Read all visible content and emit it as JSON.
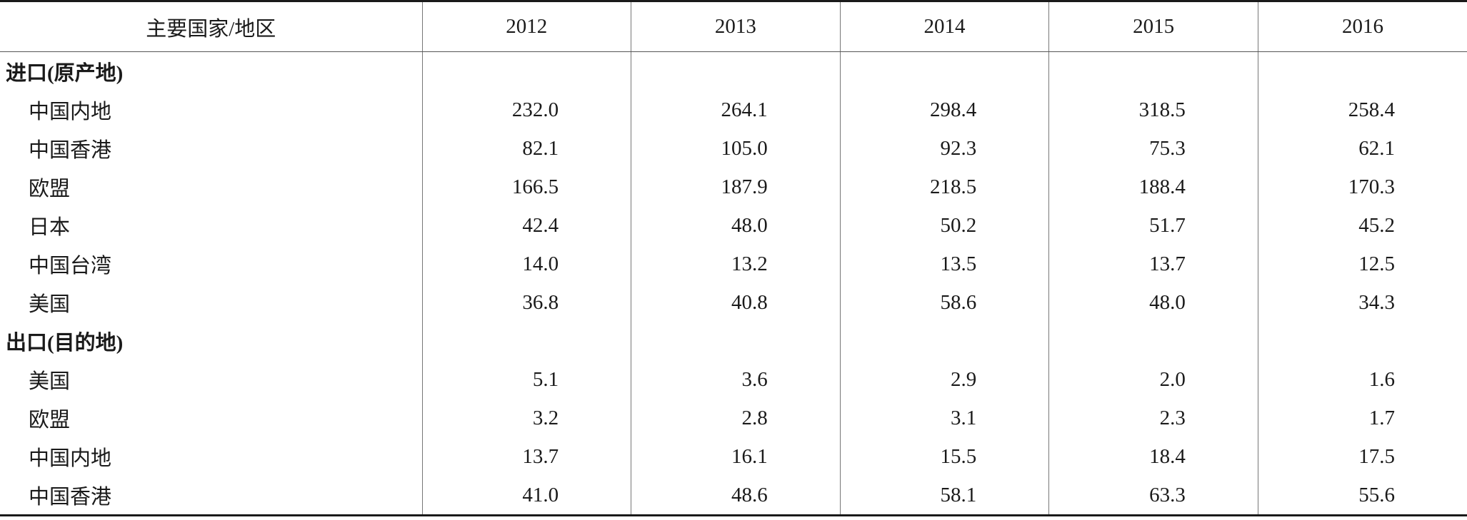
{
  "table": {
    "header": [
      "主要国家/地区",
      "2012",
      "2013",
      "2014",
      "2015",
      "2016"
    ],
    "rows": [
      [
        "进口(原产地)"
      ],
      [
        "中国内地",
        "232.0",
        "264.1",
        "298.4",
        "318.5",
        "258.4"
      ],
      [
        "中国香港",
        "82.1",
        "105.0",
        "92.3",
        "75.3",
        "62.1"
      ],
      [
        "欧盟",
        "166.5",
        "187.9",
        "218.5",
        "188.4",
        "170.3"
      ],
      [
        "日本",
        "42.4",
        "48.0",
        "50.2",
        "51.7",
        "45.2"
      ],
      [
        "中国台湾",
        "14.0",
        "13.2",
        "13.5",
        "13.7",
        "12.5"
      ],
      [
        "美国",
        "36.8",
        "40.8",
        "58.6",
        "48.0",
        "34.3"
      ],
      [
        "出口(目的地)"
      ],
      [
        "美国",
        "5.1",
        "3.6",
        "2.9",
        "2.0",
        "1.6"
      ],
      [
        "欧盟",
        "3.2",
        "2.8",
        "3.1",
        "2.3",
        "1.7"
      ],
      [
        "中国内地",
        "13.7",
        "16.1",
        "15.5",
        "18.4",
        "17.5"
      ],
      [
        "中国香港",
        "41.0",
        "48.6",
        "58.1",
        "63.3",
        "55.6"
      ]
    ]
  }
}
